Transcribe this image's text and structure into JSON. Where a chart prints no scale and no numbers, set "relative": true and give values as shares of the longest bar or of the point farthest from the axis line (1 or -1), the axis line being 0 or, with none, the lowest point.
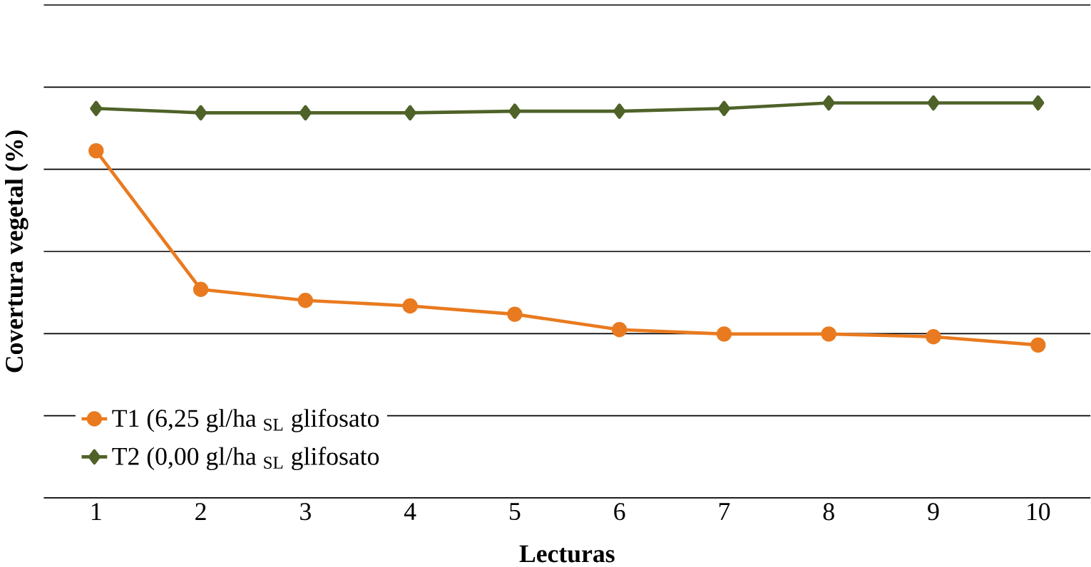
{
  "chart_data": {
    "type": "line",
    "xlabel": "Lecturas",
    "ylabel": "Covertura vegetal (%)",
    "relative": true,
    "grid": "y",
    "legend": "bottom left",
    "categories": [
      "1",
      "2",
      "3",
      "4",
      "5",
      "6",
      "7",
      "8",
      "9",
      "10"
    ],
    "series": [
      {
        "name": "T1 (6,25 gl/ha $_{SL}$ glifosato",
        "color": "#e97a1f",
        "marker": "circle",
        "values": [
          0.879,
          0.528,
          0.5,
          0.486,
          0.465,
          0.426,
          0.415,
          0.415,
          0.408,
          0.387
        ]
      },
      {
        "name": "T2 (0,00 gl/ha $_{SL}$ glifosato",
        "color": "#4f6228",
        "marker": "diamond",
        "values": [
          0.986,
          0.975,
          0.975,
          0.975,
          0.979,
          0.979,
          0.986,
          1,
          1,
          1
        ]
      }
    ]
  }
}
